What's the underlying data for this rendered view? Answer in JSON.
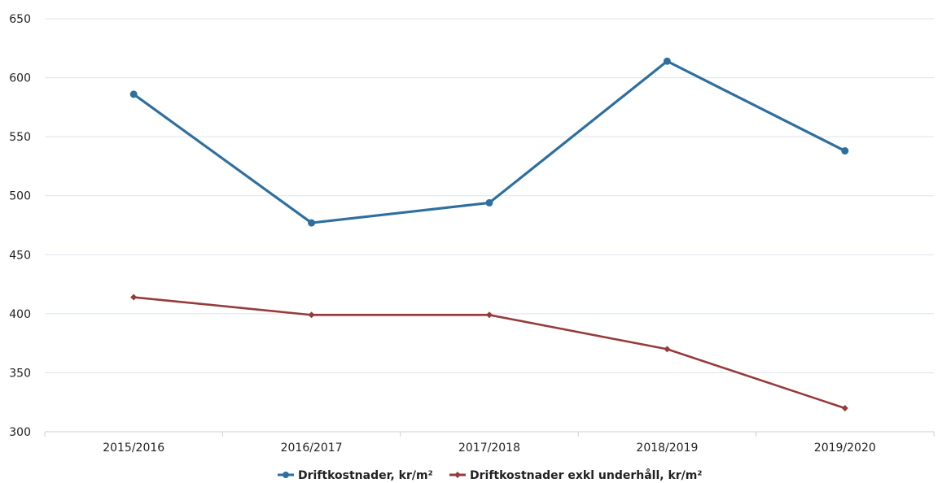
{
  "chart_data": {
    "type": "line",
    "categories": [
      "2015/2016",
      "2016/2017",
      "2017/2018",
      "2018/2019",
      "2019/2020"
    ],
    "ylim": [
      300,
      650
    ],
    "yticks": [
      300,
      350,
      400,
      450,
      500,
      550,
      600,
      650
    ],
    "grid": true,
    "legend_position": "bottom",
    "series": [
      {
        "name": "Driftkostnader, kr/m²",
        "values": [
          586,
          477,
          494,
          614,
          538
        ],
        "color": "#2e6f9e",
        "marker": "circle"
      },
      {
        "name": "Driftkostnader exkl underhåll, kr/m²",
        "values": [
          414,
          399,
          399,
          370,
          320
        ],
        "color": "#953b3b",
        "marker": "diamond"
      }
    ]
  }
}
